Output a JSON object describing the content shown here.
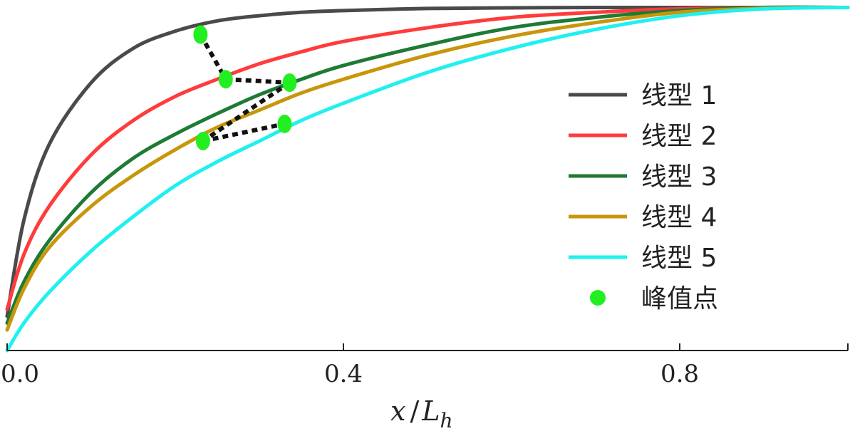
{
  "chart_data": {
    "type": "line",
    "xlabel": {
      "main": "x",
      "sep": "/",
      "var": "L",
      "sub": "h"
    },
    "ylabel": "",
    "xlim": [
      0.0,
      1.0
    ],
    "ylim": [
      0.0,
      1.0
    ],
    "x_ticks": [
      {
        "value": 0.0,
        "label": "0.0"
      },
      {
        "value": 0.4,
        "label": "0.4"
      },
      {
        "value": 0.8,
        "label": "0.8"
      }
    ],
    "grid": false,
    "legend_position": "right",
    "series": [
      {
        "name": "线型 1",
        "color": "#4a4a4a",
        "x": [
          0,
          0.02,
          0.05,
          0.1,
          0.15,
          0.2,
          0.25,
          0.3,
          0.35,
          0.4,
          0.5,
          0.6,
          0.7,
          0.8,
          0.9,
          1.0
        ],
        "y": [
          0.1,
          0.38,
          0.6,
          0.78,
          0.88,
          0.93,
          0.96,
          0.975,
          0.985,
          0.99,
          0.996,
          0.998,
          0.999,
          0.999,
          0.999,
          0.999
        ]
      },
      {
        "name": "线型 2",
        "color": "#ff3b3b",
        "x": [
          0,
          0.02,
          0.05,
          0.1,
          0.15,
          0.2,
          0.25,
          0.3,
          0.35,
          0.4,
          0.5,
          0.6,
          0.7,
          0.8,
          0.9,
          1.0
        ],
        "y": [
          0.12,
          0.28,
          0.42,
          0.57,
          0.67,
          0.74,
          0.79,
          0.835,
          0.87,
          0.9,
          0.94,
          0.97,
          0.985,
          0.995,
          0.999,
          0.999
        ]
      },
      {
        "name": "线型 3",
        "color": "#1e7a34",
        "x": [
          0,
          0.02,
          0.05,
          0.1,
          0.15,
          0.2,
          0.25,
          0.3,
          0.35,
          0.4,
          0.5,
          0.6,
          0.7,
          0.8,
          0.9,
          1.0
        ],
        "y": [
          0.08,
          0.2,
          0.32,
          0.46,
          0.56,
          0.63,
          0.69,
          0.745,
          0.79,
          0.83,
          0.89,
          0.94,
          0.97,
          0.99,
          0.999,
          0.999
        ]
      },
      {
        "name": "线型 4",
        "color": "#c8960a",
        "x": [
          0,
          0.02,
          0.05,
          0.1,
          0.15,
          0.2,
          0.25,
          0.3,
          0.35,
          0.4,
          0.5,
          0.6,
          0.7,
          0.8,
          0.9,
          1.0
        ],
        "y": [
          0.06,
          0.18,
          0.3,
          0.42,
          0.51,
          0.585,
          0.65,
          0.7,
          0.75,
          0.79,
          0.86,
          0.915,
          0.955,
          0.985,
          0.997,
          0.999
        ]
      },
      {
        "name": "线型 5",
        "color": "#1ff0f0",
        "x": [
          0,
          0.02,
          0.05,
          0.1,
          0.15,
          0.2,
          0.25,
          0.3,
          0.35,
          0.4,
          0.5,
          0.6,
          0.7,
          0.8,
          0.9,
          1.0
        ],
        "y": [
          0.0,
          0.08,
          0.17,
          0.29,
          0.39,
          0.48,
          0.55,
          0.61,
          0.67,
          0.72,
          0.81,
          0.88,
          0.935,
          0.975,
          0.995,
          0.999
        ]
      }
    ],
    "peaks": {
      "name": "峰值点",
      "color": "#22ee22",
      "points": [
        {
          "x": 0.23,
          "y": 0.92
        },
        {
          "x": 0.26,
          "y": 0.79
        },
        {
          "x": 0.336,
          "y": 0.78
        },
        {
          "x": 0.233,
          "y": 0.61
        },
        {
          "x": 0.33,
          "y": 0.66
        }
      ],
      "connectors": [
        [
          0,
          1
        ],
        [
          1,
          2
        ],
        [
          2,
          3
        ],
        [
          3,
          4
        ]
      ]
    }
  }
}
